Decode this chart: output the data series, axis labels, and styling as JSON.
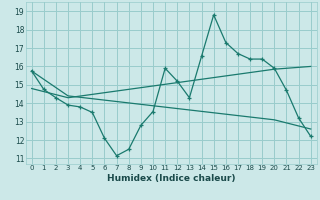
{
  "xlabel": "Humidex (Indice chaleur)",
  "bg_color": "#cce8e8",
  "grid_color": "#99cccc",
  "line_color": "#1a7a6e",
  "xlim": [
    -0.5,
    23.5
  ],
  "ylim": [
    10.7,
    19.5
  ],
  "yticks": [
    11,
    12,
    13,
    14,
    15,
    16,
    17,
    18,
    19
  ],
  "xticks": [
    0,
    1,
    2,
    3,
    4,
    5,
    6,
    7,
    8,
    9,
    10,
    11,
    12,
    13,
    14,
    15,
    16,
    17,
    18,
    19,
    20,
    21,
    22,
    23
  ],
  "line1_x": [
    0,
    1,
    2,
    3,
    4,
    5,
    6,
    7,
    8,
    9,
    10,
    11,
    12,
    13,
    14,
    15,
    16,
    17,
    18,
    19,
    20,
    21,
    22,
    23
  ],
  "line1_y": [
    15.75,
    14.75,
    14.3,
    13.9,
    13.8,
    13.5,
    12.1,
    11.15,
    11.5,
    12.8,
    13.55,
    15.9,
    15.2,
    14.3,
    16.55,
    18.8,
    17.3,
    16.7,
    16.4,
    16.4,
    15.9,
    14.7,
    13.2,
    12.2
  ],
  "line2_x": [
    0,
    3,
    20,
    23
  ],
  "line2_y": [
    15.75,
    14.4,
    13.1,
    12.6
  ],
  "line3_x": [
    0,
    3,
    20,
    23
  ],
  "line3_y": [
    14.8,
    14.3,
    15.85,
    16.0
  ]
}
